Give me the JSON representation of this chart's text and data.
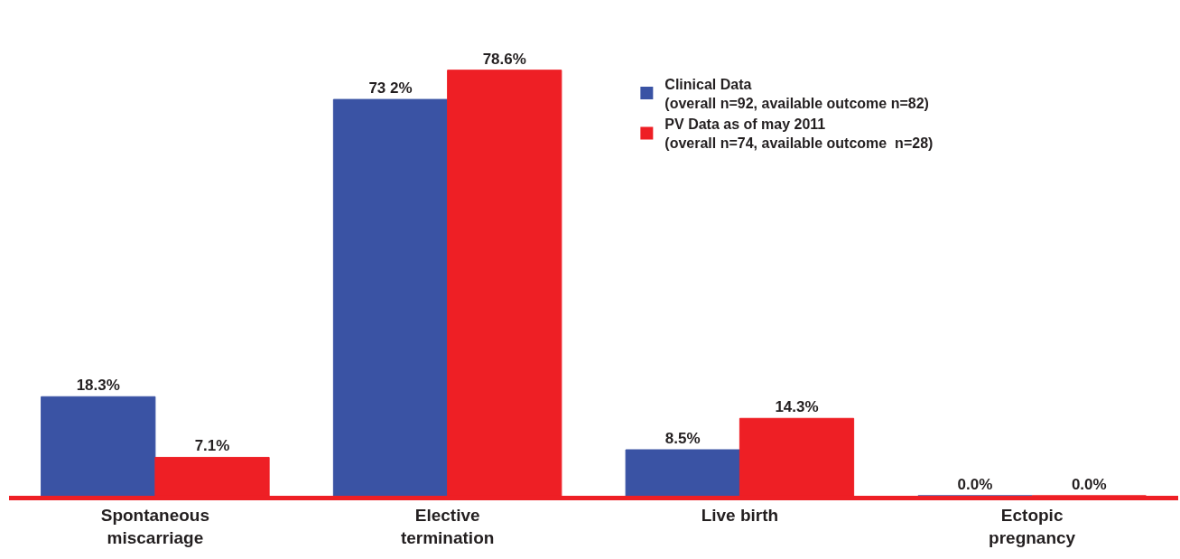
{
  "chart_data": {
    "type": "bar",
    "categories": [
      "Spontaneous\nmiscarriage",
      "Elective\ntermination",
      "Live birth",
      "Ectopic\npregnancy"
    ],
    "series": [
      {
        "name": "Clinical Data\n(overall n=92, available outcome n=82)",
        "color": "#3a53a4",
        "values": [
          18.3,
          73.2,
          8.5,
          0.0
        ],
        "value_labels": [
          "18.3%",
          "73 2%",
          "8.5%",
          "0.0%"
        ]
      },
      {
        "name": "PV Data as of may 2011\n(overall n=74, available outcome  n=28)",
        "color": "#ee1f25",
        "values": [
          7.1,
          78.6,
          14.3,
          0.0
        ],
        "value_labels": [
          "7.1%",
          "78.6%",
          "14.3%",
          "0.0%"
        ]
      }
    ],
    "legend": "top"
  }
}
